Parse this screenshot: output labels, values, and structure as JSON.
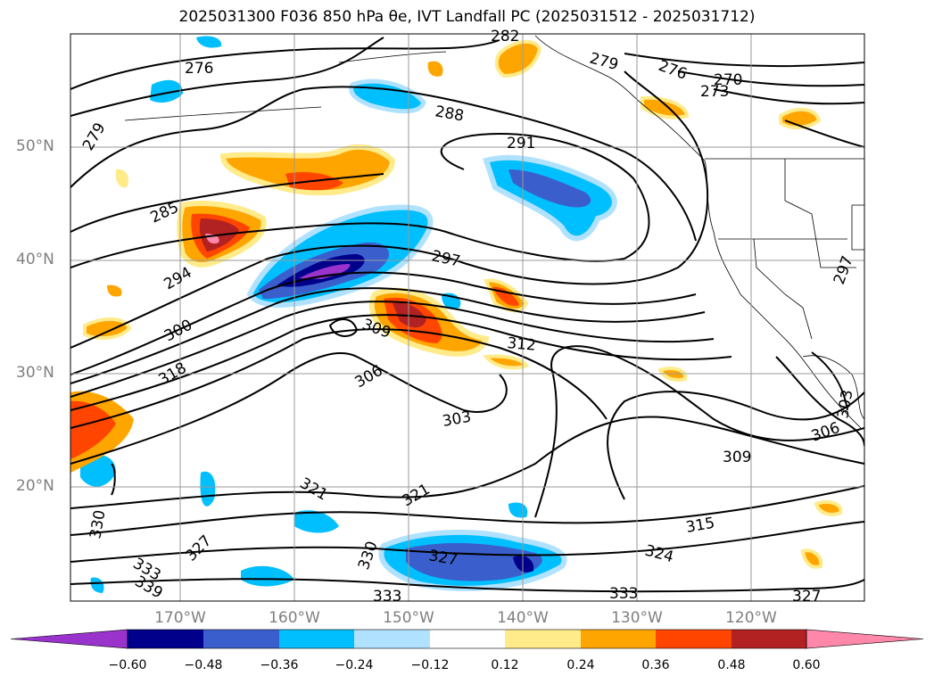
{
  "title": "2025031300 F036 850 hPa θe, IVT Landfall PC (2025031512 - 2025031712)",
  "lat_labels": [
    "50°N",
    "40°N",
    "30°N",
    "20°N"
  ],
  "lon_labels": [
    "170°W",
    "160°W",
    "150°W",
    "140°W",
    "130°W",
    "120°W"
  ],
  "colorbar": {
    "ticks": [
      "−0.60",
      "−0.48",
      "−0.36",
      "−0.24",
      "−0.12",
      "0.12",
      "0.24",
      "0.36",
      "0.48",
      "0.60"
    ],
    "colors": [
      "#9933cc",
      "#00008b",
      "#3a5fcd",
      "#00bfff",
      "#b0e2ff",
      "#ffffff",
      "#ffeb8a",
      "#ffa500",
      "#ff4500",
      "#b22222",
      "#ff88aa"
    ]
  },
  "contour_labels": [
    "276",
    "276",
    "273",
    "270",
    "279",
    "288",
    "291",
    "285",
    "294",
    "297",
    "300",
    "309",
    "312",
    "306",
    "303",
    "309",
    "306",
    "315",
    "324",
    "327",
    "330",
    "321",
    "321",
    "327",
    "330",
    "333",
    "339",
    "333",
    "333",
    "327",
    "297",
    "279",
    "303",
    "318",
    "282"
  ]
}
